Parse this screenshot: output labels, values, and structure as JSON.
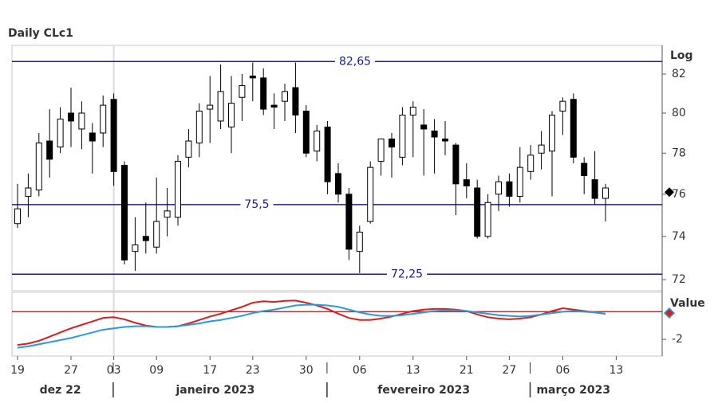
{
  "chart_data": {
    "type": "candlestick",
    "title": "Daily CLc1",
    "scale_label": "Log",
    "log_scale": true,
    "categories": [
      "2022-12-19",
      "2022-12-20",
      "2022-12-21",
      "2022-12-22",
      "2022-12-23",
      "2022-12-27",
      "2022-12-28",
      "2022-12-29",
      "2022-12-30",
      "2023-01-03",
      "2023-01-04",
      "2023-01-05",
      "2023-01-06",
      "2023-01-09",
      "2023-01-10",
      "2023-01-11",
      "2023-01-12",
      "2023-01-13",
      "2023-01-17",
      "2023-01-18",
      "2023-01-19",
      "2023-01-20",
      "2023-01-23",
      "2023-01-24",
      "2023-01-25",
      "2023-01-26",
      "2023-01-27",
      "2023-01-30",
      "2023-01-31",
      "2023-02-01",
      "2023-02-02",
      "2023-02-03",
      "2023-02-06",
      "2023-02-07",
      "2023-02-08",
      "2023-02-09",
      "2023-02-10",
      "2023-02-13",
      "2023-02-14",
      "2023-02-15",
      "2023-02-16",
      "2023-02-17",
      "2023-02-21",
      "2023-02-22",
      "2023-02-23",
      "2023-02-24",
      "2023-02-27",
      "2023-02-28",
      "2023-03-01",
      "2023-03-02",
      "2023-03-03",
      "2023-03-06",
      "2023-03-07",
      "2023-03-08",
      "2023-03-09",
      "2023-03-10",
      "2023-03-13"
    ],
    "open": [
      74.6,
      75.9,
      76.2,
      78.6,
      78.3,
      80.0,
      79.2,
      79.0,
      79.0,
      80.7,
      77.4,
      73.3,
      74.0,
      73.5,
      74.9,
      74.9,
      77.8,
      78.5,
      80.2,
      79.6,
      79.3,
      80.8,
      81.9,
      81.8,
      80.4,
      80.6,
      81.3,
      80.1,
      78.1,
      79.3,
      77.0,
      76.0,
      73.3,
      74.7,
      77.6,
      78.7,
      77.8,
      79.9,
      79.4,
      79.1,
      78.7,
      78.4,
      76.7,
      76.3,
      74.0,
      76.0,
      76.6,
      75.9,
      77.1,
      78.0,
      78.1,
      80.1,
      80.7,
      77.5,
      76.7,
      75.8,
      null
    ],
    "high": [
      76.5,
      77.0,
      79.0,
      80.2,
      80.3,
      81.3,
      80.6,
      79.5,
      80.9,
      81.0,
      77.6,
      74.9,
      75.6,
      76.8,
      76.3,
      77.9,
      79.2,
      80.5,
      81.9,
      82.5,
      81.9,
      82.0,
      82.6,
      82.3,
      81.0,
      81.5,
      82.6,
      80.4,
      79.4,
      79.6,
      77.5,
      76.3,
      74.5,
      77.6,
      78.7,
      79.0,
      80.3,
      80.6,
      80.2,
      79.7,
      79.6,
      78.5,
      77.5,
      76.7,
      76.0,
      76.9,
      77.0,
      78.3,
      78.4,
      79.1,
      80.1,
      80.8,
      81.0,
      77.8,
      78.1,
      76.5,
      null
    ],
    "low": [
      74.4,
      74.9,
      75.9,
      76.8,
      78.0,
      78.3,
      78.2,
      77.0,
      78.3,
      76.4,
      72.7,
      72.4,
      73.2,
      73.2,
      74.0,
      74.5,
      77.3,
      77.8,
      78.5,
      79.2,
      78.0,
      79.6,
      80.6,
      79.9,
      79.2,
      79.6,
      79.0,
      77.8,
      77.6,
      76.0,
      75.6,
      72.9,
      72.3,
      74.6,
      76.9,
      76.8,
      77.4,
      77.8,
      76.9,
      77.0,
      77.9,
      75.0,
      75.8,
      73.9,
      73.9,
      75.2,
      75.4,
      75.6,
      76.7,
      77.2,
      75.9,
      78.9,
      77.5,
      76.0,
      75.5,
      74.7,
      null
    ],
    "close": [
      75.3,
      76.3,
      78.5,
      77.7,
      79.7,
      79.6,
      80.0,
      78.6,
      80.4,
      77.1,
      72.9,
      73.6,
      73.8,
      74.7,
      75.2,
      77.6,
      78.6,
      80.1,
      80.4,
      81.1,
      80.5,
      81.4,
      81.8,
      80.2,
      80.3,
      81.1,
      79.9,
      78.0,
      79.1,
      76.6,
      76.0,
      73.4,
      74.2,
      77.3,
      78.7,
      78.3,
      79.9,
      80.3,
      79.2,
      78.8,
      78.6,
      76.5,
      76.4,
      74.0,
      75.6,
      76.6,
      75.9,
      77.3,
      77.9,
      78.4,
      79.9,
      80.6,
      77.8,
      76.9,
      75.8,
      76.3,
      null
    ],
    "up_color": "#ffffff",
    "down_color": "#000000",
    "ylim": [
      71.5,
      83.5
    ],
    "yticks": [
      72,
      74,
      76,
      78,
      80,
      82
    ],
    "levels": [
      {
        "value": 82.65,
        "label": "82,65"
      },
      {
        "value": 75.5,
        "label": "75,5"
      },
      {
        "value": 72.25,
        "label": "72,25"
      }
    ],
    "level_color": "#1c1c8f",
    "last_price": 76.1,
    "cursor": "2023-01-03",
    "xticks": [
      {
        "value": "2022-12-19",
        "label": "19"
      },
      {
        "value": "2022-12-27",
        "label": "27"
      },
      {
        "value": "2023-01-03",
        "label": "03"
      },
      {
        "value": "2023-01-09",
        "label": "09"
      },
      {
        "value": "2023-01-17",
        "label": "17"
      },
      {
        "value": "2023-01-23",
        "label": "23"
      },
      {
        "value": "2023-01-30",
        "label": "30"
      },
      {
        "value": "2023-02-06",
        "label": "06"
      },
      {
        "value": "2023-02-13",
        "label": "13"
      },
      {
        "value": "2023-02-21",
        "label": "21"
      },
      {
        "value": "2023-02-27",
        "label": "27"
      },
      {
        "value": "2023-03-06",
        "label": "06"
      },
      {
        "value": "2023-03-13",
        "label": "13"
      }
    ],
    "month_labels": [
      {
        "value": "2022-12",
        "label": "dez 22"
      },
      {
        "value": "2023-01",
        "label": "janeiro 2023"
      },
      {
        "value": "2023-02",
        "label": "fevereiro 2023"
      },
      {
        "value": "2023-03",
        "label": "março 2023"
      }
    ],
    "indicator": {
      "type": "line",
      "axis_label": "Value",
      "ylim": [
        -3.2,
        1.4
      ],
      "yticks": [
        -2
      ],
      "reference_line": 0,
      "reference_color": "#d62020",
      "last_value": -0.1,
      "series": [
        {
          "color": "#d62020",
          "values": [
            -2.4,
            -2.3,
            -2.1,
            -1.8,
            -1.5,
            -1.2,
            -0.95,
            -0.7,
            -0.45,
            -0.4,
            -0.55,
            -0.8,
            -1.0,
            -1.1,
            -1.1,
            -1.05,
            -0.85,
            -0.6,
            -0.35,
            -0.15,
            0.1,
            0.35,
            0.65,
            0.75,
            0.7,
            0.78,
            0.8,
            0.65,
            0.45,
            0.2,
            -0.15,
            -0.45,
            -0.6,
            -0.6,
            -0.5,
            -0.35,
            -0.15,
            0.05,
            0.15,
            0.2,
            0.2,
            0.15,
            0.05,
            -0.2,
            -0.4,
            -0.5,
            -0.55,
            -0.5,
            -0.4,
            -0.2,
            0.05,
            0.25,
            0.15,
            0.05,
            -0.05,
            -0.15,
            null
          ]
        },
        {
          "color": "#2a9ad8",
          "values": [
            -2.6,
            -2.5,
            -2.35,
            -2.2,
            -2.05,
            -1.9,
            -1.7,
            -1.5,
            -1.3,
            -1.2,
            -1.1,
            -1.05,
            -1.05,
            -1.1,
            -1.1,
            -1.05,
            -0.95,
            -0.85,
            -0.7,
            -0.6,
            -0.45,
            -0.3,
            -0.1,
            0.05,
            0.15,
            0.3,
            0.45,
            0.5,
            0.5,
            0.45,
            0.35,
            0.15,
            -0.05,
            -0.2,
            -0.3,
            -0.3,
            -0.25,
            -0.15,
            -0.05,
            0.05,
            0.1,
            0.1,
            0.05,
            -0.05,
            -0.15,
            -0.25,
            -0.3,
            -0.35,
            -0.3,
            -0.2,
            -0.1,
            0.0,
            0.05,
            0.0,
            -0.05,
            -0.15,
            null
          ]
        }
      ]
    }
  }
}
